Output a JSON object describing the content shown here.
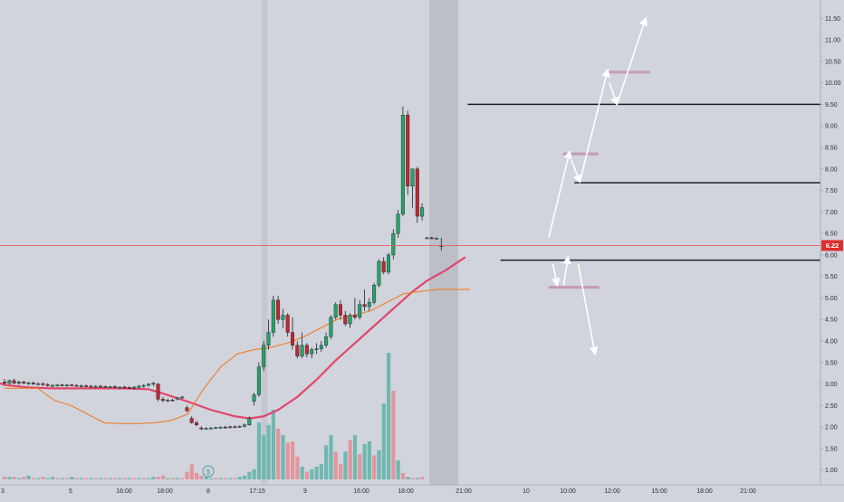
{
  "chart_data": {
    "type": "candlestick",
    "title": "",
    "price_axis": {
      "ylim": [
        0.7,
        11.8
      ],
      "ticks": [
        "1.00",
        "1.50",
        "2.00",
        "2.50",
        "3.00",
        "3.50",
        "4.00",
        "4.50",
        "5.00",
        "5.50",
        "6.00",
        "6.50",
        "7.00",
        "7.50",
        "8.00",
        "8.50",
        "9.00",
        "9.50",
        "10.00",
        "10.50",
        "11.00",
        "11.50"
      ],
      "last_price_label": "6.22",
      "last_price": 6.22
    },
    "time_axis": {
      "ticks": [
        "3",
        "5",
        "16:00",
        "18:00",
        "8",
        "17:15",
        "9",
        "16:00",
        "18:00",
        "21:00",
        "10",
        "10:00",
        "12:00",
        "15:00",
        "18:00",
        "21:00"
      ]
    },
    "session_marker": "$",
    "candles": [
      {
        "o": 3.05,
        "h": 3.12,
        "l": 2.98,
        "c": 3.02
      },
      {
        "o": 3.02,
        "h": 3.1,
        "l": 2.98,
        "c": 3.08
      },
      {
        "o": 3.08,
        "h": 3.12,
        "l": 3.0,
        "c": 3.02
      },
      {
        "o": 3.02,
        "h": 3.08,
        "l": 2.98,
        "c": 3.05
      },
      {
        "o": 3.05,
        "h": 3.08,
        "l": 3.0,
        "c": 3.02
      },
      {
        "o": 3.02,
        "h": 3.06,
        "l": 2.98,
        "c": 3.03
      },
      {
        "o": 3.03,
        "h": 3.06,
        "l": 2.98,
        "c": 3.0
      },
      {
        "o": 3.0,
        "h": 3.04,
        "l": 2.97,
        "c": 3.01
      },
      {
        "o": 3.01,
        "h": 3.04,
        "l": 2.96,
        "c": 2.99
      },
      {
        "o": 2.99,
        "h": 3.02,
        "l": 2.94,
        "c": 2.96
      },
      {
        "o": 2.96,
        "h": 3.0,
        "l": 2.93,
        "c": 2.97
      },
      {
        "o": 2.97,
        "h": 3.0,
        "l": 2.94,
        "c": 2.98
      },
      {
        "o": 2.98,
        "h": 3.01,
        "l": 2.95,
        "c": 2.96
      },
      {
        "o": 2.96,
        "h": 3.0,
        "l": 2.93,
        "c": 2.98
      },
      {
        "o": 2.98,
        "h": 3.01,
        "l": 2.95,
        "c": 2.97
      },
      {
        "o": 2.97,
        "h": 3.0,
        "l": 2.94,
        "c": 2.95
      },
      {
        "o": 2.95,
        "h": 2.99,
        "l": 2.92,
        "c": 2.96
      },
      {
        "o": 2.96,
        "h": 2.99,
        "l": 2.93,
        "c": 2.95
      },
      {
        "o": 2.95,
        "h": 2.98,
        "l": 2.92,
        "c": 2.93
      },
      {
        "o": 2.93,
        "h": 2.97,
        "l": 2.9,
        "c": 2.95
      },
      {
        "o": 2.95,
        "h": 2.98,
        "l": 2.92,
        "c": 2.94
      },
      {
        "o": 2.94,
        "h": 2.97,
        "l": 2.91,
        "c": 2.93
      },
      {
        "o": 2.93,
        "h": 2.96,
        "l": 2.9,
        "c": 2.94
      },
      {
        "o": 2.94,
        "h": 2.97,
        "l": 2.91,
        "c": 2.92
      },
      {
        "o": 2.92,
        "h": 2.95,
        "l": 2.89,
        "c": 2.93
      },
      {
        "o": 2.93,
        "h": 2.96,
        "l": 2.9,
        "c": 2.92
      },
      {
        "o": 2.92,
        "h": 2.95,
        "l": 2.88,
        "c": 2.9
      },
      {
        "o": 2.9,
        "h": 2.95,
        "l": 2.87,
        "c": 2.93
      },
      {
        "o": 2.93,
        "h": 2.98,
        "l": 2.9,
        "c": 2.95
      },
      {
        "o": 2.95,
        "h": 3.0,
        "l": 2.92,
        "c": 2.97
      },
      {
        "o": 2.97,
        "h": 3.02,
        "l": 2.94,
        "c": 3.0
      },
      {
        "o": 3.0,
        "h": 3.05,
        "l": 2.95,
        "c": 3.02
      },
      {
        "o": 3.0,
        "h": 3.02,
        "l": 2.6,
        "c": 2.65
      },
      {
        "o": 2.65,
        "h": 2.7,
        "l": 2.58,
        "c": 2.62
      },
      {
        "o": 2.62,
        "h": 2.66,
        "l": 2.58,
        "c": 2.63
      },
      {
        "o": 2.63,
        "h": 2.66,
        "l": 2.6,
        "c": 2.62
      },
      {
        "o": 2.65,
        "h": 2.7,
        "l": 2.62,
        "c": 2.68
      },
      {
        "o": 2.68,
        "h": 2.72,
        "l": 2.66,
        "c": 2.7
      },
      {
        "o": 2.45,
        "h": 2.5,
        "l": 2.35,
        "c": 2.38
      },
      {
        "o": 2.2,
        "h": 2.25,
        "l": 2.08,
        "c": 2.1
      },
      {
        "o": 2.1,
        "h": 2.15,
        "l": 2.02,
        "c": 2.05
      },
      {
        "o": 1.98,
        "h": 2.02,
        "l": 1.93,
        "c": 1.96
      },
      {
        "o": 1.96,
        "h": 2.0,
        "l": 1.94,
        "c": 1.97
      },
      {
        "o": 1.97,
        "h": 2.0,
        "l": 1.95,
        "c": 1.98
      },
      {
        "o": 1.98,
        "h": 2.01,
        "l": 1.96,
        "c": 1.99
      },
      {
        "o": 1.99,
        "h": 2.02,
        "l": 1.96,
        "c": 2.0
      },
      {
        "o": 2.0,
        "h": 2.03,
        "l": 1.97,
        "c": 1.99
      },
      {
        "o": 1.99,
        "h": 2.03,
        "l": 1.97,
        "c": 2.01
      },
      {
        "o": 2.01,
        "h": 2.04,
        "l": 1.98,
        "c": 2.0
      },
      {
        "o": 2.0,
        "h": 2.04,
        "l": 1.98,
        "c": 2.02
      },
      {
        "o": 2.02,
        "h": 2.08,
        "l": 1.99,
        "c": 2.05
      },
      {
        "o": 2.05,
        "h": 2.25,
        "l": 2.03,
        "c": 2.2
      },
      {
        "o": 2.6,
        "h": 2.8,
        "l": 2.5,
        "c": 2.75
      },
      {
        "o": 2.75,
        "h": 3.5,
        "l": 2.7,
        "c": 3.4
      },
      {
        "o": 3.4,
        "h": 4.0,
        "l": 3.3,
        "c": 3.9
      },
      {
        "o": 3.9,
        "h": 4.5,
        "l": 3.8,
        "c": 4.2
      },
      {
        "o": 4.2,
        "h": 5.05,
        "l": 4.1,
        "c": 4.95
      },
      {
        "o": 4.95,
        "h": 5.05,
        "l": 4.4,
        "c": 4.5
      },
      {
        "o": 4.5,
        "h": 4.75,
        "l": 4.3,
        "c": 4.6
      },
      {
        "o": 4.6,
        "h": 4.65,
        "l": 4.1,
        "c": 4.2
      },
      {
        "o": 4.2,
        "h": 4.55,
        "l": 3.8,
        "c": 3.9
      },
      {
        "o": 3.9,
        "h": 4.0,
        "l": 3.6,
        "c": 3.65
      },
      {
        "o": 3.65,
        "h": 4.2,
        "l": 3.6,
        "c": 3.9
      },
      {
        "o": 3.9,
        "h": 3.95,
        "l": 3.62,
        "c": 3.7
      },
      {
        "o": 3.7,
        "h": 3.85,
        "l": 3.6,
        "c": 3.8
      },
      {
        "o": 3.8,
        "h": 3.95,
        "l": 3.7,
        "c": 3.82
      },
      {
        "o": 3.82,
        "h": 4.0,
        "l": 3.75,
        "c": 3.9
      },
      {
        "o": 3.9,
        "h": 4.2,
        "l": 3.85,
        "c": 4.1
      },
      {
        "o": 4.1,
        "h": 4.6,
        "l": 4.05,
        "c": 4.55
      },
      {
        "o": 4.55,
        "h": 4.9,
        "l": 4.5,
        "c": 4.85
      },
      {
        "o": 4.85,
        "h": 4.95,
        "l": 4.5,
        "c": 4.6
      },
      {
        "o": 4.6,
        "h": 4.7,
        "l": 4.35,
        "c": 4.4
      },
      {
        "o": 4.4,
        "h": 4.65,
        "l": 4.3,
        "c": 4.6
      },
      {
        "o": 4.6,
        "h": 5.0,
        "l": 4.5,
        "c": 4.55
      },
      {
        "o": 4.55,
        "h": 4.95,
        "l": 4.5,
        "c": 4.85
      },
      {
        "o": 4.85,
        "h": 5.2,
        "l": 4.7,
        "c": 4.8
      },
      {
        "o": 4.8,
        "h": 5.0,
        "l": 4.7,
        "c": 4.9
      },
      {
        "o": 4.9,
        "h": 5.35,
        "l": 4.85,
        "c": 5.3
      },
      {
        "o": 5.3,
        "h": 5.9,
        "l": 5.25,
        "c": 5.85
      },
      {
        "o": 5.85,
        "h": 5.95,
        "l": 5.55,
        "c": 5.6
      },
      {
        "o": 5.6,
        "h": 6.05,
        "l": 5.55,
        "c": 6.0
      },
      {
        "o": 6.0,
        "h": 6.6,
        "l": 5.9,
        "c": 6.5
      },
      {
        "o": 6.5,
        "h": 7.05,
        "l": 6.4,
        "c": 6.95
      },
      {
        "o": 6.95,
        "h": 9.45,
        "l": 6.9,
        "c": 9.25
      },
      {
        "o": 9.25,
        "h": 9.35,
        "l": 7.4,
        "c": 7.6
      },
      {
        "o": 7.6,
        "h": 8.0,
        "l": 7.1,
        "c": 8.0
      },
      {
        "o": 8.0,
        "h": 8.05,
        "l": 6.75,
        "c": 6.9
      },
      {
        "o": 6.9,
        "h": 7.2,
        "l": 6.8,
        "c": 7.1
      },
      {
        "o": 6.4,
        "h": 6.42,
        "l": 6.38,
        "c": 6.4
      },
      {
        "o": 6.4,
        "h": 6.42,
        "l": 6.38,
        "c": 6.39
      },
      {
        "o": 6.39,
        "h": 6.41,
        "l": 6.37,
        "c": 6.39
      },
      {
        "o": 6.22,
        "h": 6.4,
        "l": 6.1,
        "c": 6.22
      }
    ],
    "volume": [
      {
        "v": 0.02,
        "up": false
      },
      {
        "v": 0.02,
        "up": true
      },
      {
        "v": 0.02,
        "up": false
      },
      {
        "v": 0.01,
        "up": true
      },
      {
        "v": 0.02,
        "up": false
      },
      {
        "v": 0.03,
        "up": true
      },
      {
        "v": 0.01,
        "up": false
      },
      {
        "v": 0.01,
        "up": true
      },
      {
        "v": 0.02,
        "up": false
      },
      {
        "v": 0.01,
        "up": true
      },
      {
        "v": 0.02,
        "up": true
      },
      {
        "v": 0.01,
        "up": false
      },
      {
        "v": 0.01,
        "up": true
      },
      {
        "v": 0.01,
        "up": false
      },
      {
        "v": 0.02,
        "up": true
      },
      {
        "v": 0.01,
        "up": false
      },
      {
        "v": 0.01,
        "up": true
      },
      {
        "v": 0.01,
        "up": false
      },
      {
        "v": 0.01,
        "up": true
      },
      {
        "v": 0.01,
        "up": false
      },
      {
        "v": 0.01,
        "up": true
      },
      {
        "v": 0.01,
        "up": false
      },
      {
        "v": 0.01,
        "up": true
      },
      {
        "v": 0.01,
        "up": false
      },
      {
        "v": 0.01,
        "up": true
      },
      {
        "v": 0.01,
        "up": false
      },
      {
        "v": 0.01,
        "up": true
      },
      {
        "v": 0.01,
        "up": false
      },
      {
        "v": 0.01,
        "up": true
      },
      {
        "v": 0.01,
        "up": false
      },
      {
        "v": 0.01,
        "up": true
      },
      {
        "v": 0.02,
        "up": true
      },
      {
        "v": 0.02,
        "up": false
      },
      {
        "v": 0.03,
        "up": false
      },
      {
        "v": 0.01,
        "up": true
      },
      {
        "v": 0.01,
        "up": false
      },
      {
        "v": 0.01,
        "up": true
      },
      {
        "v": 0.01,
        "up": false
      },
      {
        "v": 0.06,
        "up": false
      },
      {
        "v": 0.12,
        "up": false
      },
      {
        "v": 0.05,
        "up": false
      },
      {
        "v": 0.03,
        "up": false
      },
      {
        "v": 0.02,
        "up": true
      },
      {
        "v": 0.01,
        "up": true
      },
      {
        "v": 0.01,
        "up": false
      },
      {
        "v": 0.01,
        "up": true
      },
      {
        "v": 0.01,
        "up": false
      },
      {
        "v": 0.01,
        "up": true
      },
      {
        "v": 0.01,
        "up": false
      },
      {
        "v": 0.02,
        "up": true
      },
      {
        "v": 0.03,
        "up": true
      },
      {
        "v": 0.06,
        "up": true
      },
      {
        "v": 0.08,
        "up": true
      },
      {
        "v": 0.45,
        "up": true
      },
      {
        "v": 0.35,
        "up": true
      },
      {
        "v": 0.43,
        "up": true
      },
      {
        "v": 0.55,
        "up": true
      },
      {
        "v": 0.4,
        "up": false
      },
      {
        "v": 0.35,
        "up": true
      },
      {
        "v": 0.29,
        "up": false
      },
      {
        "v": 0.3,
        "up": false
      },
      {
        "v": 0.18,
        "up": false
      },
      {
        "v": 0.1,
        "up": true
      },
      {
        "v": 0.06,
        "up": false
      },
      {
        "v": 0.08,
        "up": true
      },
      {
        "v": 0.1,
        "up": true
      },
      {
        "v": 0.12,
        "up": true
      },
      {
        "v": 0.27,
        "up": true
      },
      {
        "v": 0.35,
        "up": true
      },
      {
        "v": 0.22,
        "up": false
      },
      {
        "v": 0.12,
        "up": false
      },
      {
        "v": 0.22,
        "up": true
      },
      {
        "v": 0.31,
        "up": false
      },
      {
        "v": 0.35,
        "up": true
      },
      {
        "v": 0.2,
        "up": false
      },
      {
        "v": 0.28,
        "up": true
      },
      {
        "v": 0.3,
        "up": true
      },
      {
        "v": 0.19,
        "up": false
      },
      {
        "v": 0.23,
        "up": true
      },
      {
        "v": 0.6,
        "up": true
      },
      {
        "v": 1.0,
        "up": true
      },
      {
        "v": 0.7,
        "up": false
      },
      {
        "v": 0.15,
        "up": true
      },
      {
        "v": 0.05,
        "up": false
      },
      {
        "v": 0.02,
        "up": true
      },
      {
        "v": 0.01,
        "up": false
      },
      {
        "v": 0.01,
        "up": true
      },
      {
        "v": 0.02,
        "up": false
      }
    ],
    "vwap_line": [
      [
        3.0,
        2.9
      ],
      [
        3.5,
        2.9
      ],
      [
        4.0,
        2.9
      ],
      [
        4.5,
        2.62
      ],
      [
        5.0,
        2.5
      ],
      [
        5.5,
        2.3
      ],
      [
        6.0,
        2.1
      ],
      [
        6.5,
        2.08
      ],
      [
        7.0,
        2.08
      ],
      [
        7.5,
        2.1
      ],
      [
        8.0,
        2.15
      ],
      [
        8.5,
        2.3
      ],
      [
        9.0,
        2.9
      ],
      [
        9.5,
        3.4
      ],
      [
        10.0,
        3.7
      ],
      [
        10.5,
        3.8
      ],
      [
        11.0,
        3.85
      ],
      [
        11.5,
        3.95
      ],
      [
        12.0,
        4.1
      ],
      [
        12.5,
        4.3
      ],
      [
        13.0,
        4.5
      ],
      [
        13.5,
        4.6
      ],
      [
        14.0,
        4.7
      ],
      [
        14.5,
        4.9
      ],
      [
        15.0,
        5.1
      ],
      [
        15.5,
        5.15
      ],
      [
        16.0,
        5.2
      ],
      [
        17.0,
        5.2
      ]
    ],
    "moving_average": [
      [
        -15.0,
        3.85
      ],
      [
        -10.0,
        3.45
      ],
      [
        -5.0,
        3.18
      ],
      [
        0.0,
        2.98
      ],
      [
        5.0,
        2.92
      ],
      [
        10.0,
        2.9
      ],
      [
        15.0,
        2.9
      ],
      [
        20.0,
        2.9
      ],
      [
        25.0,
        2.9
      ],
      [
        30.0,
        2.88
      ],
      [
        33.0,
        2.78
      ],
      [
        38.0,
        2.6
      ],
      [
        43.0,
        2.4
      ],
      [
        48.0,
        2.25
      ],
      [
        51.0,
        2.2
      ],
      [
        54.0,
        2.25
      ],
      [
        57.0,
        2.4
      ],
      [
        61.0,
        2.7
      ],
      [
        65.0,
        3.1
      ],
      [
        69.0,
        3.55
      ],
      [
        73.0,
        3.95
      ],
      [
        77.0,
        4.35
      ],
      [
        81.0,
        4.75
      ],
      [
        85.0,
        5.15
      ],
      [
        88.0,
        5.4
      ],
      [
        92.0,
        5.65
      ],
      [
        96.0,
        5.95
      ]
    ],
    "levels": [
      {
        "price": 9.5,
        "x_from": 57,
        "x_to": 100
      },
      {
        "price": 7.68,
        "x_from": 70,
        "x_to": 100
      },
      {
        "price": 5.88,
        "x_from": 61,
        "x_to": 100
      }
    ],
    "target_marks": [
      {
        "price": 10.25,
        "x_from": 0.72,
        "x_to": 0.77
      },
      {
        "price": 8.35,
        "x_from": 0.667,
        "x_to": 0.709
      },
      {
        "price": 5.25,
        "x_from": 0.65,
        "x_to": 0.71
      }
    ],
    "arrows": [
      {
        "from": [
          0.65,
          6.4
        ],
        "to": [
          0.675,
          8.4
        ]
      },
      {
        "from": [
          0.677,
          8.2
        ],
        "to": [
          0.687,
          7.7
        ]
      },
      {
        "from": [
          0.687,
          7.7
        ],
        "to": [
          0.72,
          10.3
        ]
      },
      {
        "from": [
          0.722,
          10.0
        ],
        "to": [
          0.731,
          9.5
        ]
      },
      {
        "from": [
          0.731,
          9.5
        ],
        "to": [
          0.765,
          11.5
        ]
      },
      {
        "from": [
          0.655,
          5.8
        ],
        "to": [
          0.66,
          5.3
        ]
      },
      {
        "from": [
          0.668,
          5.3
        ],
        "to": [
          0.673,
          5.95
        ]
      },
      {
        "from": [
          0.685,
          5.8
        ],
        "to": [
          0.705,
          3.7
        ]
      }
    ],
    "shaded_sessions": [
      {
        "x_from": 53.5,
        "x_to": 54.8,
        "shade": "light"
      },
      {
        "x_from": 88.5,
        "x_to": 94.5,
        "shade": "medium"
      }
    ],
    "colors": {
      "background": "#d1d4dc",
      "up": "#26a269",
      "down": "#c0282e",
      "vol_up": "#6fb8b0",
      "vol_down": "#e3969e",
      "vwap": "#f07d2a",
      "ma": "#e2476b",
      "level": "#1e222d",
      "target": "#c59ab2",
      "arrow": "#ffffff",
      "price_tag": "#e02e2e",
      "price_line": "#e06060",
      "axis_text": "#2a2e39"
    }
  }
}
